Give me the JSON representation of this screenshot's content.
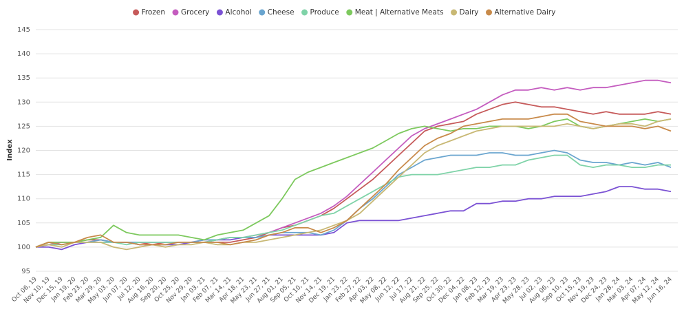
{
  "chart_data": {
    "type": "line",
    "y_label": "Index",
    "categories": [
      "Oct 06, 19",
      "Nov 10, 19",
      "Dec 15, 19",
      "Jan 19, 20",
      "Feb 23, 20",
      "Mar 29, 20",
      "May 03, 20",
      "Jun 07, 20",
      "Jul 12, 20",
      "Aug 16, 20",
      "Sep 20, 20",
      "Oct 25, 20",
      "Nov 29, 20",
      "Jan 03, 21",
      "Feb 07, 21",
      "Mar 14, 21",
      "Apr 18, 21",
      "May 23, 21",
      "Jun 27, 21",
      "Aug 01, 21",
      "Sep 05, 21",
      "Oct 10, 21",
      "Nov 14, 21",
      "Dec 19, 21",
      "Jan 23, 22",
      "Feb 27, 22",
      "Apr 03, 22",
      "May 08, 22",
      "Jun 12, 22",
      "Jul 17, 22",
      "Aug 21, 22",
      "Sep 25, 22",
      "Oct 30, 22",
      "Dec 04, 22",
      "Jan 08, 23",
      "Feb 12, 23",
      "Mar 19, 23",
      "Apr 23, 23",
      "May 28, 23",
      "Jul 02, 23",
      "Aug 06, 23",
      "Sep 10, 23",
      "Oct 15, 23",
      "Nov 19, 23",
      "Dec 24, 23",
      "Jan 28, 24",
      "Mar 03, 24",
      "Apr 07, 24",
      "May 12, 24",
      "Jun 16, 24"
    ],
    "series": [
      {
        "name": "Frozen",
        "color": "#c65a5a",
        "values": [
          100,
          101,
          101,
          101,
          101.5,
          101.5,
          101,
          101,
          101,
          100.5,
          101,
          101,
          101,
          101,
          101,
          101,
          101.5,
          102,
          103,
          104,
          104.5,
          105.5,
          106.5,
          108,
          110,
          112,
          114,
          116.5,
          119,
          121.5,
          124,
          125,
          125.5,
          126,
          127.5,
          128.5,
          129.5,
          130,
          129.5,
          129,
          129,
          128.5,
          128,
          127.5,
          128,
          127.5,
          127.5,
          127.5,
          128,
          127.5
        ]
      },
      {
        "name": "Grocery",
        "color": "#c45cbf",
        "values": [
          100,
          100.5,
          101,
          101,
          101,
          101.5,
          101,
          101,
          101,
          101,
          101,
          101,
          101,
          101.5,
          101.5,
          102,
          102,
          102.5,
          103,
          104,
          105,
          106,
          107,
          108.5,
          110.5,
          113,
          115.5,
          118,
          120.5,
          123,
          124.5,
          125.5,
          126.5,
          127.5,
          128.5,
          130,
          131.5,
          132.5,
          132.5,
          133,
          132.5,
          133,
          132.5,
          133,
          133,
          133.5,
          134,
          134.5,
          134.5,
          134
        ]
      },
      {
        "name": "Alcohol",
        "color": "#7b52d4",
        "values": [
          100,
          100,
          99.5,
          100.5,
          101,
          101,
          101,
          101,
          100.5,
          100.5,
          100.5,
          100.5,
          101,
          101,
          101.5,
          101.5,
          102,
          102,
          102.5,
          102.5,
          102.5,
          102.5,
          102.5,
          103,
          105,
          105.5,
          105.5,
          105.5,
          105.5,
          106,
          106.5,
          107,
          107.5,
          107.5,
          109,
          109,
          109.5,
          109.5,
          110,
          110,
          110.5,
          110.5,
          110.5,
          111,
          111.5,
          112.5,
          112.5,
          112,
          112,
          111.5
        ]
      },
      {
        "name": "Cheese",
        "color": "#6aa5cf",
        "values": [
          100,
          101,
          100.5,
          101,
          101,
          101.5,
          101,
          101,
          101,
          101,
          101,
          101,
          101,
          101.5,
          101.5,
          102,
          102,
          102,
          102.5,
          103,
          103,
          103,
          102.5,
          103.5,
          105.5,
          108,
          110,
          112.5,
          115,
          116.5,
          118,
          118.5,
          119,
          119,
          119,
          119.5,
          119.5,
          119,
          119,
          119.5,
          120,
          119.5,
          118,
          117.5,
          117.5,
          117,
          117.5,
          117,
          117.5,
          116.5
        ]
      },
      {
        "name": "Produce",
        "color": "#7fd3a8",
        "values": [
          100,
          100.5,
          100.5,
          101,
          101,
          101,
          101,
          100.5,
          101,
          101,
          101,
          101,
          101,
          101,
          101.5,
          102,
          102,
          102.5,
          103,
          103.5,
          104.5,
          105.5,
          106.5,
          107,
          108.5,
          110,
          111.5,
          113,
          114.5,
          115,
          115,
          115,
          115.5,
          116,
          116.5,
          116.5,
          117,
          117,
          118,
          118.5,
          119,
          119,
          117,
          116.5,
          117,
          117,
          116.5,
          116.5,
          117,
          117
        ]
      },
      {
        "name": "Meat | Alternative Meats",
        "color": "#7dc95e",
        "values": [
          100,
          101,
          101,
          101,
          101.5,
          102,
          104.5,
          103,
          102.5,
          102.5,
          102.5,
          102.5,
          102,
          101.5,
          102.5,
          103,
          103.5,
          105,
          106.5,
          110,
          114,
          115.5,
          116.5,
          117.5,
          118.5,
          119.5,
          120.5,
          122,
          123.5,
          124.5,
          125,
          124.5,
          124,
          124.5,
          124.5,
          125,
          125,
          125,
          124.5,
          125,
          126,
          126.5,
          125,
          124.5,
          125,
          125.5,
          126,
          126.5,
          126,
          126.5
        ]
      },
      {
        "name": "Dairy",
        "color": "#c8b874",
        "values": [
          100,
          100.5,
          100,
          101,
          101,
          101,
          100,
          99.5,
          100,
          100.5,
          100,
          100.5,
          100.5,
          101,
          100.5,
          100.5,
          101,
          101,
          101.5,
          102,
          102.5,
          103,
          103.5,
          104.5,
          105.5,
          107,
          109.5,
          112,
          114.5,
          117,
          119.5,
          121,
          122,
          123,
          124,
          124.5,
          125,
          125,
          125,
          125,
          125,
          125.5,
          125,
          124.5,
          125,
          125.5,
          125.5,
          125,
          126,
          126.5
        ]
      },
      {
        "name": "Alternative Dairy",
        "color": "#c88a4a",
        "values": [
          100,
          101,
          100.5,
          101,
          102,
          102.5,
          101,
          101,
          100.5,
          100.5,
          100.5,
          101,
          101,
          101,
          101,
          100.5,
          101,
          101.5,
          102.5,
          103,
          104,
          104,
          103,
          104,
          105.5,
          108,
          110.5,
          113,
          116,
          118.5,
          121,
          122.5,
          123.5,
          125,
          125.5,
          126,
          126.5,
          126.5,
          126.5,
          127,
          127.5,
          127.5,
          126,
          125.5,
          125,
          125,
          125,
          124.5,
          125,
          124
        ]
      }
    ],
    "ylim": [
      95,
      145
    ],
    "yticks": [
      95,
      100,
      105,
      110,
      115,
      120,
      125,
      130,
      135,
      140,
      145
    ],
    "grid": true
  }
}
